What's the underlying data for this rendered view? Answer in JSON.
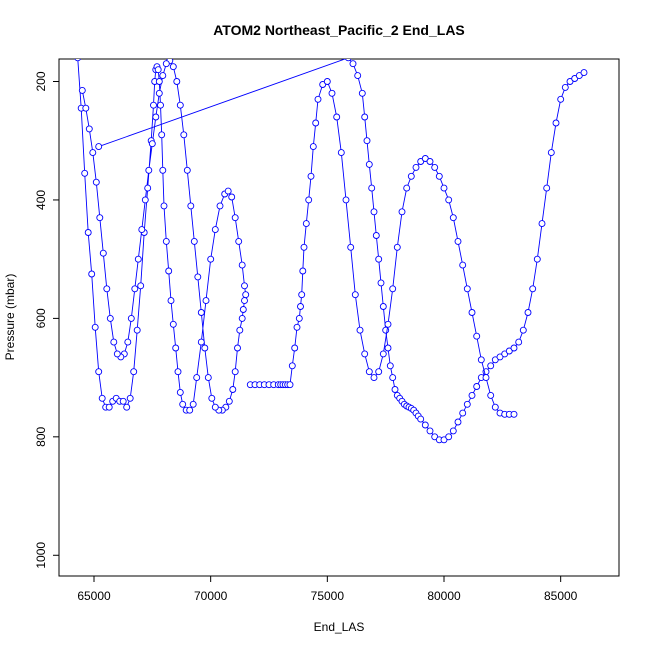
{
  "chart_data": {
    "type": "line",
    "title": "ATOM2 Northeast_Pacific_2 End_LAS",
    "xlabel": "End_LAS",
    "ylabel": "Pressure (mbar)",
    "xlim": [
      63500,
      87500
    ],
    "ylim": [
      1035,
      162
    ],
    "y_reversed": true,
    "x_ticks": [
      65000,
      70000,
      75000,
      80000,
      85000
    ],
    "x_tick_labels": [
      "65000",
      "70000",
      "75000",
      "80000",
      "85000"
    ],
    "y_ticks": [
      200,
      400,
      600,
      800,
      1000
    ],
    "y_tick_labels": [
      "200",
      "400",
      "600",
      "800",
      "1000"
    ],
    "grid": false,
    "legend": "none",
    "colors": {
      "series": "#0000ff",
      "axis": "#000000"
    },
    "series": [
      {
        "style": "line-with-open-circles",
        "x": [
          64300,
          64450,
          64600,
          64750,
          64900,
          65050,
          65200,
          65350,
          65500,
          65650,
          65800,
          65950,
          66100,
          66250,
          66400,
          66550,
          66700,
          66850,
          67000,
          67150,
          67300,
          67450,
          67550,
          67600,
          67650,
          67700,
          67750,
          67800,
          67850,
          67900,
          67950,
          68000,
          68100,
          68200,
          68300,
          68400,
          68500,
          68600,
          68700,
          68800,
          68950,
          69100,
          69250,
          69400,
          69600,
          69800,
          70000,
          70200,
          70400,
          70600,
          70750,
          70900,
          71050,
          71200,
          71350,
          71450,
          71500,
          71450,
          71400,
          71350,
          71250,
          71150,
          71050,
          70950,
          70800,
          70650,
          70500,
          70350,
          70200,
          70050,
          69900,
          69750,
          69600,
          69450,
          69300,
          69150,
          69000,
          68850,
          68700,
          68550,
          68400,
          68250,
          68100,
          67950,
          67800,
          67650,
          67500,
          67350,
          67200,
          67050,
          66900,
          66750,
          66600,
          66450,
          66300,
          66150,
          66000,
          65850,
          65700,
          65550,
          65400,
          65250,
          65100,
          64950,
          64800,
          64650,
          64500
        ],
        "y": [
          160,
          245,
          355,
          455,
          525,
          615,
          690,
          735,
          750,
          750,
          740,
          735,
          740,
          740,
          750,
          735,
          690,
          620,
          545,
          455,
          380,
          300,
          240,
          200,
          180,
          175,
          180,
          200,
          240,
          290,
          350,
          410,
          470,
          520,
          570,
          610,
          650,
          690,
          725,
          745,
          755,
          755,
          745,
          700,
          640,
          570,
          500,
          450,
          410,
          390,
          385,
          395,
          430,
          470,
          510,
          545,
          560,
          570,
          585,
          600,
          620,
          650,
          690,
          720,
          740,
          750,
          755,
          755,
          750,
          735,
          700,
          650,
          590,
          530,
          470,
          410,
          350,
          290,
          240,
          200,
          175,
          165,
          170,
          190,
          220,
          260,
          305,
          350,
          400,
          450,
          500,
          550,
          600,
          640,
          660,
          665,
          660,
          640,
          600,
          550,
          490,
          430,
          370,
          320,
          280,
          245,
          215
        ]
      },
      {
        "style": "line-with-open-circles",
        "x": [
          65200,
          75900,
          76100,
          76300,
          76500,
          76600,
          76700,
          76800,
          76900,
          77000,
          77100,
          77200,
          77300,
          77400,
          77500,
          77600,
          77700,
          77800,
          77900,
          78000,
          78100,
          78200,
          78300,
          78400,
          78500,
          78600,
          78700,
          78800,
          78900,
          79000,
          79200,
          79400,
          79600,
          79800,
          80000,
          80200,
          80400,
          80600,
          80800,
          81000,
          81200,
          81400,
          81600,
          81800,
          82000,
          82200,
          82400,
          82600,
          82800,
          83000,
          83200,
          83400,
          83600,
          83800,
          84000,
          84200,
          84400,
          84600,
          84800,
          85000,
          85200,
          85400,
          85600,
          85800,
          86000
        ],
        "y": [
          310,
          160,
          170,
          190,
          220,
          260,
          300,
          340,
          380,
          420,
          460,
          500,
          540,
          580,
          620,
          650,
          680,
          700,
          720,
          730,
          735,
          740,
          745,
          748,
          750,
          752,
          755,
          760,
          765,
          770,
          780,
          790,
          800,
          805,
          805,
          800,
          790,
          775,
          760,
          745,
          730,
          715,
          700,
          690,
          680,
          670,
          665,
          660,
          655,
          650,
          640,
          620,
          590,
          550,
          500,
          440,
          380,
          320,
          270,
          230,
          210,
          200,
          195,
          190,
          185
        ]
      },
      {
        "style": "line-with-open-circles",
        "x": [
          71700,
          71900,
          72100,
          72300,
          72500,
          72700,
          72900,
          73000,
          73100,
          73200,
          73300,
          73400,
          73500,
          73600,
          73700,
          73800,
          73850,
          73900,
          73950,
          74000,
          74100,
          74200,
          74300,
          74400,
          74500,
          74600,
          74800,
          75000,
          75200,
          75400,
          75600,
          75800,
          76000,
          76200,
          76400,
          76600,
          76800,
          77000,
          77200,
          77400,
          77600,
          77800,
          78000,
          78200,
          78400,
          78600,
          78800,
          79000,
          79200,
          79400,
          79600,
          79800,
          80000,
          80200,
          80400,
          80600,
          80800,
          81000,
          81200,
          81400,
          81600,
          81800,
          82000,
          82200,
          82400,
          82600,
          82800,
          83000
        ],
        "y": [
          712,
          712,
          712,
          712,
          712,
          712,
          712,
          712,
          712,
          712,
          712,
          712,
          680,
          650,
          615,
          600,
          580,
          560,
          520,
          480,
          440,
          400,
          360,
          310,
          270,
          230,
          205,
          200,
          220,
          260,
          320,
          400,
          480,
          560,
          620,
          660,
          690,
          700,
          690,
          660,
          610,
          550,
          480,
          420,
          380,
          360,
          345,
          335,
          330,
          335,
          345,
          360,
          380,
          400,
          430,
          470,
          510,
          550,
          590,
          630,
          670,
          700,
          730,
          750,
          760,
          762,
          762,
          762
        ]
      }
    ]
  }
}
